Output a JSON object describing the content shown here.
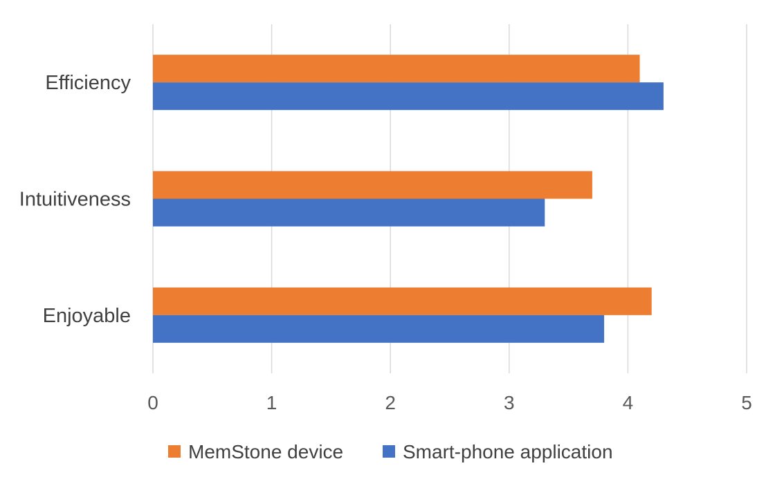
{
  "chart_data": {
    "type": "bar",
    "orientation": "horizontal",
    "categories": [
      "Efficiency",
      "Intuitiveness",
      "Enjoyable"
    ],
    "series": [
      {
        "name": "MemStone device",
        "values": [
          4.1,
          3.7,
          4.2
        ],
        "color": "#ED7D31"
      },
      {
        "name": "Smart-phone application",
        "values": [
          4.3,
          3.3,
          3.8
        ],
        "color": "#4472C4"
      }
    ],
    "xlim": [
      0,
      5
    ],
    "xticks": [
      "0",
      "1",
      "2",
      "3",
      "4",
      "5"
    ],
    "grid": true,
    "legend_position": "bottom",
    "title": "",
    "xlabel": "",
    "ylabel": ""
  }
}
